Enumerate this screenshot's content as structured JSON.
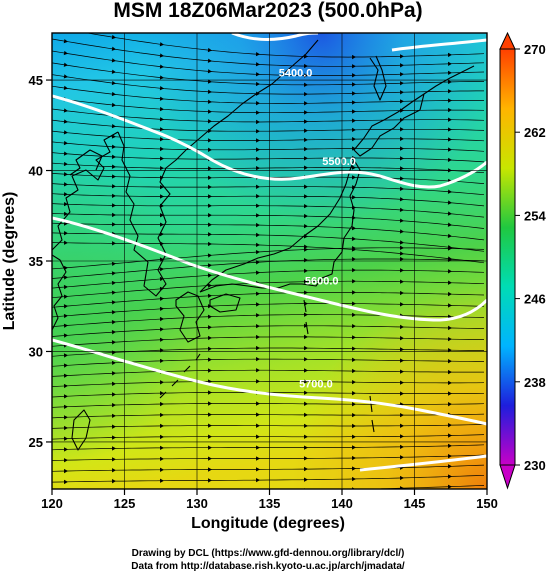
{
  "title": "MSM 18Z06Mar2023 (500.0hPa)",
  "map": {
    "lon_range": [
      120,
      150
    ],
    "lat_range": [
      22.4,
      47.6
    ],
    "x_label": "Longitude (degrees)",
    "y_label": "Latitude  (degrees)",
    "x_ticks": [
      "120",
      "125",
      "130",
      "135",
      "140",
      "145",
      "150"
    ],
    "y_ticks": [
      "25",
      "30",
      "35",
      "40",
      "45"
    ],
    "gridlines": true,
    "shading": "temperature",
    "streamlines": "wind"
  },
  "contours": [
    {
      "label": "5400.0",
      "lon": 136.8,
      "lat": 45.2
    },
    {
      "label": "5500.0",
      "lon": 139.8,
      "lat": 40.3
    },
    {
      "label": "5600.0",
      "lon": 138.6,
      "lat": 33.7
    },
    {
      "label": "5700.0",
      "lon": 138.2,
      "lat": 28.0
    }
  ],
  "colorbar": {
    "ticks": [
      "270",
      "262",
      "254",
      "246",
      "238",
      "230"
    ],
    "min": 230,
    "max": 270,
    "colors": [
      "#c800c8",
      "#1e1edc",
      "#00b4ff",
      "#00dcb4",
      "#20c840",
      "#c8e600",
      "#ffb400",
      "#ff4000"
    ]
  },
  "credits": {
    "line1": "Drawing by DCL (https://www.gfd-dennou.org/library/dcl/)",
    "line2": "Data from http://database.rish.kyoto-u.ac.jp/arch/jmadata/"
  }
}
